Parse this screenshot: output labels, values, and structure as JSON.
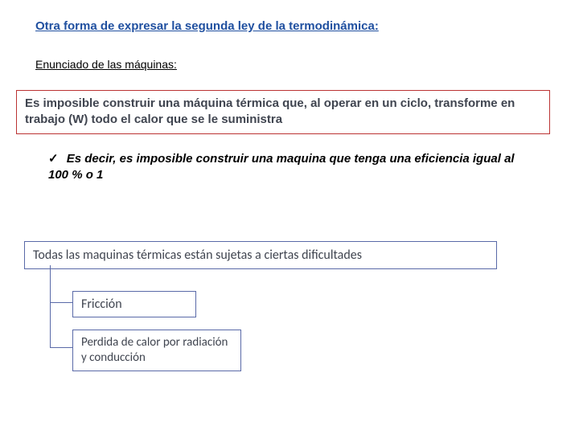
{
  "title": "Otra forma de expresar la segunda ley de la termodinámica:",
  "subtitle": "Enunciado de las máquinas:",
  "statement1": "Es imposible construir una máquina térmica que, al operar en un ciclo, transforme en trabajo (W) todo el calor que se le suministra",
  "checkmark": "✓",
  "conclusion": "Es decir,  es imposible construir una maquina que tenga una eficiencia igual al 100 %  o 1",
  "difficulties": {
    "main": "Todas las maquinas térmicas están sujetas a ciertas dificultades",
    "item1": "Fricción",
    "item2": "Perdida de calor por radiación y conducción"
  },
  "colors": {
    "title_color": "#2050a0",
    "box1_border": "#bb3333",
    "box_blue_border": "#5a6aa8",
    "body_text": "#404550",
    "background": "#ffffff"
  }
}
